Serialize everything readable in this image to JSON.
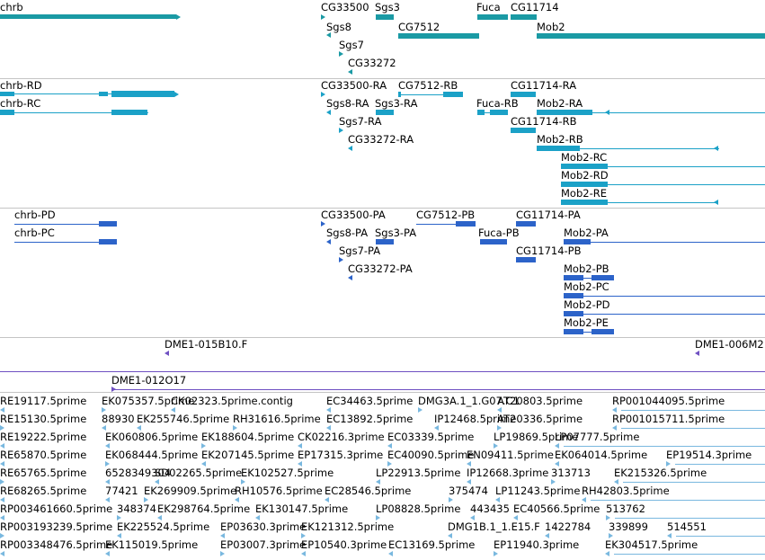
{
  "colors": {
    "gene": "#1a9aa4",
    "transcript": "#1ba1c7",
    "protein": "#2c63c9",
    "clone": "#6f50c2",
    "est": "#79b8df",
    "separator": "#c4c4c4"
  },
  "tracks": {
    "genes": {
      "items": [
        {
          "label": "chrb"
        },
        {
          "label": "CG33500"
        },
        {
          "label": "Sgs3"
        },
        {
          "label": "Fuca"
        },
        {
          "label": "CG11714"
        },
        {
          "label": "Sgs8"
        },
        {
          "label": "CG7512"
        },
        {
          "label": "Mob2"
        },
        {
          "label": "Sgs7"
        },
        {
          "label": "CG33272"
        }
      ]
    },
    "transcripts": {
      "items": [
        {
          "label": "chrb-RD"
        },
        {
          "label": "chrb-RC"
        },
        {
          "label": "CG33500-RA"
        },
        {
          "label": "CG7512-RB"
        },
        {
          "label": "CG11714-RA"
        },
        {
          "label": "Sgs8-RA"
        },
        {
          "label": "Sgs3-RA"
        },
        {
          "label": "Fuca-RB"
        },
        {
          "label": "Mob2-RA"
        },
        {
          "label": "Sgs7-RA"
        },
        {
          "label": "CG11714-RB"
        },
        {
          "label": "CG33272-RA"
        },
        {
          "label": "Mob2-RB"
        },
        {
          "label": "Mob2-RC"
        },
        {
          "label": "Mob2-RD"
        },
        {
          "label": "Mob2-RE"
        }
      ]
    },
    "proteins": {
      "items": [
        {
          "label": "chrb-PD"
        },
        {
          "label": "chrb-PC"
        },
        {
          "label": "CG33500-PA"
        },
        {
          "label": "CG7512-PB"
        },
        {
          "label": "CG11714-PA"
        },
        {
          "label": "Sgs8-PA"
        },
        {
          "label": "Sgs3-PA"
        },
        {
          "label": "Fuca-PB"
        },
        {
          "label": "Mob2-PA"
        },
        {
          "label": "Sgs7-PA"
        },
        {
          "label": "CG11714-PB"
        },
        {
          "label": "CG33272-PA"
        },
        {
          "label": "Mob2-PB"
        },
        {
          "label": "Mob2-PC"
        },
        {
          "label": "Mob2-PD"
        },
        {
          "label": "Mob2-PE"
        }
      ]
    },
    "clones": {
      "items": [
        {
          "label": "DME1-015B10.F"
        },
        {
          "label": "DME1-006M2"
        },
        {
          "label": "DME1-012O17"
        }
      ]
    },
    "ests": {
      "rows": [
        [
          "RE19117.5prime",
          "EK075357.5prime",
          "CK02323.5prime.contig",
          "EC34463.5prime",
          "DMG3A.1_1.G07.C1",
          "AT20803.5prime",
          "RP001044095.5prime"
        ],
        [
          "RE15130.5prime",
          "88930",
          "EK255746.5prime",
          "RH31616.5prime",
          "EC13892.5prime",
          "IP12468.5prime",
          "AT20336.5prime",
          "RP001015711.5prime"
        ],
        [
          "RE19222.5prime",
          "EK060806.5prime",
          "EK188604.5prime",
          "CK02216.3prime",
          "EC03339.5prime",
          "LP19869.5prime",
          "LP07777.5prime"
        ],
        [
          "RE65870.5prime",
          "EK068444.5prime",
          "EK207145.5prime",
          "EP17315.3prime",
          "EC40090.5prime",
          "EN09411.5prime",
          "EK064014.5prime",
          "EP19514.3prime"
        ],
        [
          "RE65765.5prime",
          "6528349304",
          "SD02265.5prime",
          "EK102527.5prime",
          "LP22913.5prime",
          "IP12668.3prime",
          "313713",
          "EK215326.5prime"
        ],
        [
          "RE68265.5prime",
          "77421",
          "EK269909.5prime",
          "RH10576.5prime",
          "EC28546.5prime",
          "375474",
          "LP11243.5prime",
          "RH42803.5prime"
        ],
        [
          "RP003461660.5prime",
          "348374",
          "EK298764.5prime",
          "EK130147.5prime",
          "LP08828.5prime",
          "443435",
          "EC40566.5prime",
          "513762"
        ],
        [
          "RP003193239.5prime",
          "EK225524.5prime",
          "EP03630.3prime",
          "EK121312.5prime",
          "DMG1B.1_1.E15.F",
          "1422784",
          "339899",
          "514551"
        ],
        [
          "RP003348476.5prime",
          "EK115019.5prime",
          "EP03007.3prime",
          "EP10540.3prime",
          "EC13169.5prime",
          "EP11940.3prime",
          "EK304517.5prime"
        ]
      ]
    }
  }
}
